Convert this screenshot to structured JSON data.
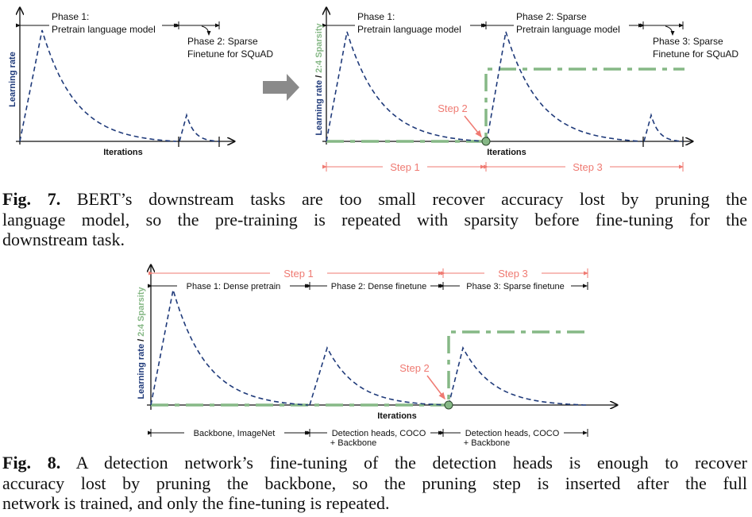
{
  "colors": {
    "learning_rate": "#1f3a7a",
    "sparsity": "#86b886",
    "step": "#ef7a72",
    "arrow_gray": "#8a8a8a"
  },
  "fig7": {
    "left": {
      "ylabel": "Learning rate",
      "xlabel": "Iterations",
      "phase1_line1": "Phase 1:",
      "phase1_line2": "Pretrain language model",
      "phase2_line1": "Phase 2: Sparse",
      "phase2_line2": "Finetune for SQuAD"
    },
    "transition_arrow": "right-arrow-icon",
    "right": {
      "ylabel_a": "Learning rate",
      "ylabel_sep": " / ",
      "ylabel_b": "2:4 Sparsity",
      "xlabel": "Iterations",
      "phase1_line1": "Phase 1:",
      "phase1_line2": "Pretrain language model",
      "phase2_line1": "Phase 2: Sparse",
      "phase2_line2": "Pretrain language model",
      "phase3_line1": "Phase 3: Sparse",
      "phase3_line2": "Finetune for SQuAD",
      "step1": "Step 1",
      "step2": "Step 2",
      "step3": "Step 3"
    },
    "caption": {
      "label": "Fig. 7.",
      "lines": [
        " BERT’s downstream tasks are too small recover accuracy lost by pruning the",
        "language model, so the pre-training is repeated with sparsity before fine-tuning for the",
        "downstream task."
      ]
    }
  },
  "fig8": {
    "ylabel_a": "Learning rate",
    "ylabel_sep": " / ",
    "ylabel_b": "2:4 Sparsity",
    "xlabel": "Iterations",
    "step1": "Step 1",
    "step2": "Step 2",
    "step3": "Step 3",
    "phase1": "Phase 1: Dense pretrain",
    "phase2": "Phase 2: Dense finetune",
    "phase3": "Phase 3: Sparse finetune",
    "data1": "Backbone, ImageNet",
    "data2_line1": "Detection heads, COCO",
    "data2_line2": "+ Backbone",
    "data3_line1": "Detection heads, COCO",
    "data3_line2": "+ Backbone",
    "caption": {
      "label": "Fig. 8.",
      "lines": [
        " A detection network’s fine-tuning of the detection heads is enough to recover",
        "accuracy lost by pruning the backbone, so the pruning step is inserted after the full",
        "network is trained, and only the fine-tuning is repeated."
      ]
    }
  }
}
